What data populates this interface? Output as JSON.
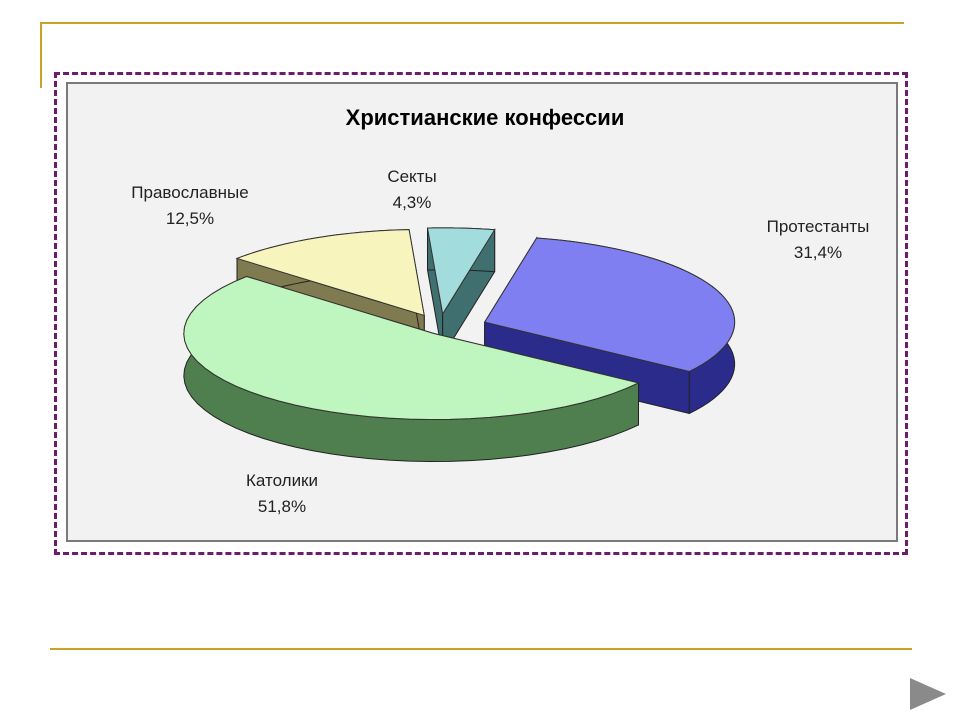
{
  "chart_data": {
    "type": "pie",
    "style": "3d-exploded",
    "title": "Христианские конфессии",
    "categories": [
      "Протестанты",
      "Католики",
      "Православные",
      "Секты"
    ],
    "values": [
      31.4,
      51.8,
      12.5,
      4.3
    ],
    "value_labels": [
      "31,4%",
      "51,8%",
      "12,5%",
      "4,3%"
    ],
    "colors": {
      "Протестанты": {
        "top": "#7f7ff2",
        "side": "#2b2b8c"
      },
      "Католики": {
        "top": "#bff5bf",
        "side": "#4f7f4f"
      },
      "Православные": {
        "top": "#f7f5bd",
        "side": "#7f7a4f"
      },
      "Секты": {
        "top": "#a3dcdc",
        "side": "#3f6f6f"
      }
    },
    "legend": "none"
  },
  "colors": {
    "accent_lines": "#c9a227",
    "frame_dash": "#6e1a6e",
    "chart_background": "#f2f2f2",
    "arrow": "#8a8a8a"
  },
  "navigation": {
    "next_icon": "next-slide-icon"
  }
}
